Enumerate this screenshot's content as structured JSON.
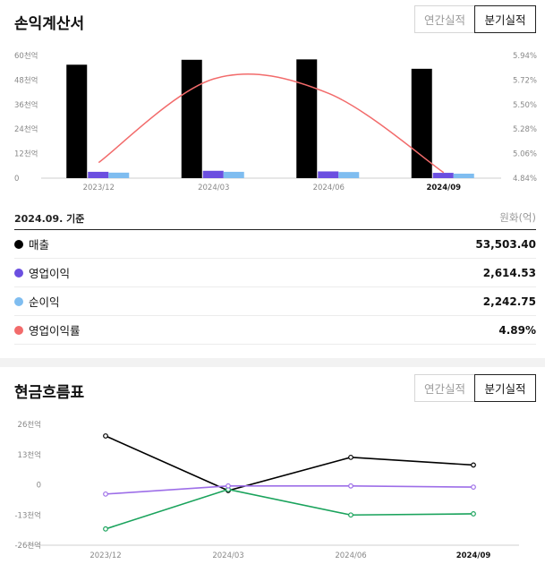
{
  "income": {
    "title": "손익계산서",
    "tabs": {
      "annual": "연간실적",
      "quarterly": "분기실적"
    },
    "basis": "2024.09. 기준",
    "unit": "원화(억)",
    "legend": [
      {
        "name": "매출",
        "value": "53,503.40",
        "color": "#000000"
      },
      {
        "name": "영업이익",
        "value": "2,614.53",
        "color": "#6b4fe0"
      },
      {
        "name": "순이익",
        "value": "2,242.75",
        "color": "#7fbdf0"
      },
      {
        "name": "영업이익률",
        "value": "4.89%",
        "color": "#f26b6b"
      }
    ]
  },
  "cashflow": {
    "title": "현금흐름표",
    "tabs": {
      "annual": "연간실적",
      "quarterly": "분기실적"
    }
  },
  "chart_data": [
    {
      "type": "bar",
      "categories": [
        "2023/12",
        "2024/03",
        "2024/06",
        "2024/09"
      ],
      "highlight_category": "2024/09",
      "left_axis": {
        "min": 0,
        "max": 60,
        "ticks": [
          0,
          12,
          24,
          36,
          48,
          60
        ],
        "tick_labels": [
          "0",
          "12천억",
          "24천억",
          "36천억",
          "48천억",
          "60천억"
        ]
      },
      "right_axis": {
        "min": 4.84,
        "max": 5.94,
        "ticks": [
          4.84,
          5.06,
          5.28,
          5.5,
          5.72,
          5.94
        ],
        "tick_labels": [
          "4.84%",
          "5.06%",
          "5.28%",
          "5.50%",
          "5.72%",
          "5.94%"
        ]
      },
      "series": [
        {
          "key": "sales",
          "values": [
            55.5,
            57.9,
            58.1,
            53.5
          ],
          "color": "#000000"
        },
        {
          "key": "op",
          "values": [
            3.1,
            3.6,
            3.3,
            2.6
          ],
          "color": "#6b4fe0"
        },
        {
          "key": "net",
          "values": [
            2.7,
            3.1,
            3.0,
            2.2
          ],
          "color": "#7fbdf0"
        },
        {
          "key": "margin",
          "values": [
            4.98,
            5.73,
            5.6,
            4.89
          ],
          "color": "#f26b6b",
          "axis": "right",
          "type": "line"
        }
      ],
      "grid": false
    },
    {
      "type": "line",
      "categories": [
        "2023/12",
        "2024/03",
        "2024/06",
        "2024/09"
      ],
      "highlight_category": "2024/09",
      "y_axis": {
        "min": -26,
        "max": 26,
        "ticks": [
          -26,
          -13,
          0,
          13,
          26
        ],
        "tick_labels": [
          "-26천억",
          "-13천억",
          "0",
          "13천억",
          "26천억"
        ]
      },
      "series": [
        {
          "key": "operating",
          "values": [
            21.0,
            -2.5,
            11.8,
            8.5
          ],
          "color": "#000000"
        },
        {
          "key": "investing",
          "values": [
            -19.0,
            -2.0,
            -13.0,
            -12.5
          ],
          "color": "#1aa35c"
        },
        {
          "key": "financing",
          "values": [
            -4.0,
            -0.5,
            -0.5,
            -1.0
          ],
          "color": "#9d6ee8"
        }
      ],
      "grid": false
    }
  ]
}
